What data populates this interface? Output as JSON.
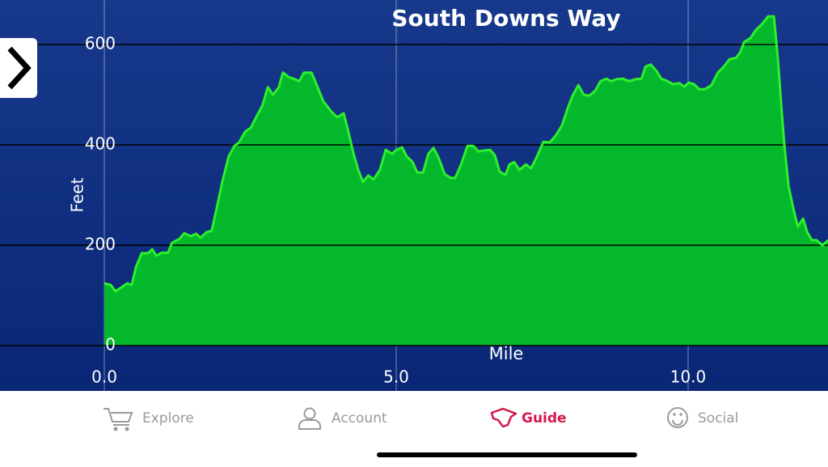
{
  "chart_data": {
    "type": "area",
    "title": "South Downs Way",
    "xlabel": "Mile",
    "ylabel": "Feet",
    "x": [
      0,
      0.11,
      0.19,
      0.29,
      0.39,
      0.47,
      0.54,
      0.64,
      0.75,
      0.82,
      0.89,
      0.98,
      1.09,
      1.16,
      1.29,
      1.37,
      1.48,
      1.57,
      1.65,
      1.75,
      1.84,
      1.91,
      2.02,
      2.13,
      2.23,
      2.31,
      2.41,
      2.51,
      2.6,
      2.71,
      2.8,
      2.89,
      2.99,
      3.06,
      3.16,
      3.24,
      3.34,
      3.42,
      3.55,
      3.64,
      3.75,
      3.89,
      3.99,
      4.1,
      4.17,
      4.27,
      4.35,
      4.43,
      4.52,
      4.61,
      4.72,
      4.82,
      4.93,
      5.0,
      5.1,
      5.18,
      5.28,
      5.36,
      5.46,
      5.55,
      5.64,
      5.73,
      5.83,
      5.93,
      6.01,
      6.11,
      6.22,
      6.32,
      6.41,
      6.52,
      6.61,
      6.69,
      6.77,
      6.87,
      6.94,
      7.02,
      7.11,
      7.22,
      7.31,
      7.4,
      7.52,
      7.63,
      7.73,
      7.84,
      7.94,
      8.02,
      8.12,
      8.21,
      8.31,
      8.41,
      8.5,
      8.6,
      8.68,
      8.78,
      8.88,
      8.99,
      9.1,
      9.2,
      9.27,
      9.36,
      9.46,
      9.54,
      9.65,
      9.74,
      9.85,
      9.93,
      10.01,
      10.1,
      10.19,
      10.29,
      10.4,
      10.51,
      10.61,
      10.71,
      10.82,
      10.89,
      10.96,
      11.07,
      11.16,
      11.26,
      11.37,
      11.47,
      11.54,
      11.59,
      11.65,
      11.72,
      11.81,
      11.88,
      11.97,
      12.04,
      12.12,
      12.2,
      12.3,
      12.4
    ],
    "series": [
      {
        "color": "#04b82c",
        "line_color": "#2cf02c",
        "values": [
          124,
          121,
          108,
          116,
          124,
          121,
          156,
          184,
          184,
          192,
          179,
          185,
          185,
          205,
          213,
          224,
          218,
          223,
          215,
          226,
          229,
          266,
          326,
          377,
          398,
          405,
          426,
          434,
          455,
          479,
          515,
          500,
          515,
          544,
          535,
          532,
          527,
          544,
          544,
          519,
          487,
          466,
          455,
          463,
          431,
          382,
          350,
          326,
          339,
          331,
          350,
          390,
          382,
          390,
          395,
          377,
          366,
          345,
          345,
          382,
          394,
          373,
          342,
          334,
          334,
          361,
          398,
          398,
          387,
          389,
          390,
          379,
          347,
          340,
          361,
          366,
          350,
          361,
          353,
          374,
          406,
          405,
          418,
          439,
          474,
          498,
          519,
          500,
          498,
          508,
          527,
          532,
          527,
          531,
          532,
          527,
          531,
          532,
          556,
          560,
          547,
          532,
          527,
          521,
          523,
          516,
          524,
          521,
          511,
          511,
          519,
          544,
          556,
          571,
          573,
          584,
          605,
          613,
          629,
          640,
          656,
          656,
          568,
          487,
          398,
          318,
          269,
          237,
          253,
          226,
          210,
          210,
          200,
          210
        ]
      }
    ],
    "xlim": [
      -1.787,
      12.396
    ],
    "ylim": [
      -90.3,
      688.7
    ],
    "xticks": [
      {
        "value": 0,
        "label": "0.0"
      },
      {
        "value": 5,
        "label": "5.0"
      },
      {
        "value": 10,
        "label": "10.0"
      }
    ],
    "yticks": [
      0,
      200,
      400,
      600
    ],
    "grid": true
  },
  "tab_bar": {
    "tabs": [
      {
        "label": "Explore"
      },
      {
        "label": "Account"
      },
      {
        "label": "Guide"
      },
      {
        "label": "Social"
      }
    ],
    "selected": 2
  }
}
